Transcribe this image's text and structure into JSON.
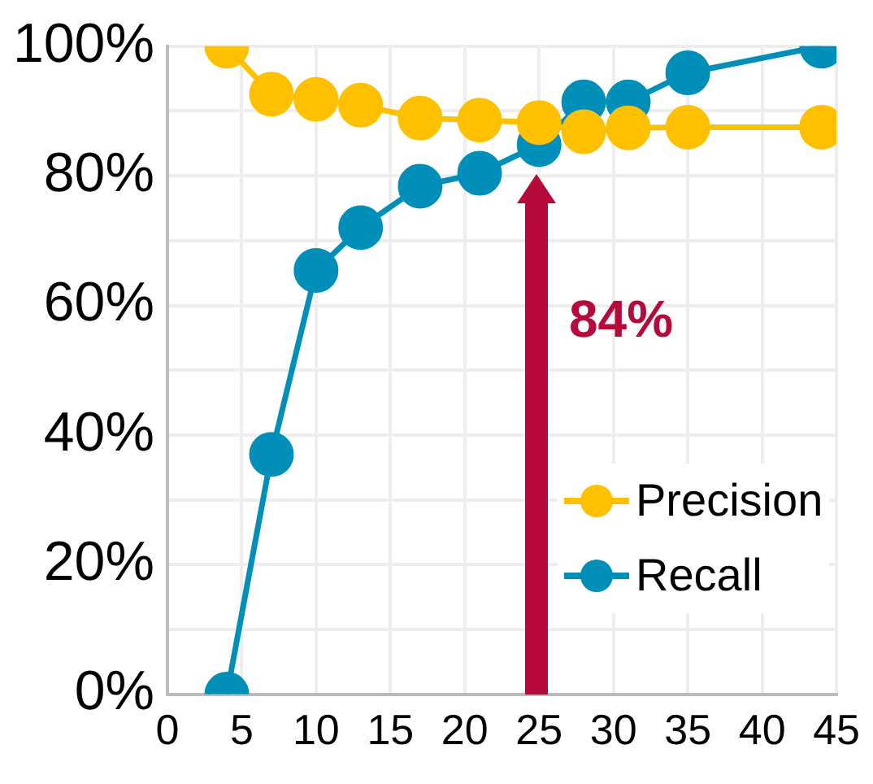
{
  "chart_data": {
    "type": "line",
    "xlim": [
      0,
      45
    ],
    "xticks": [
      0,
      5,
      10,
      15,
      20,
      25,
      30,
      35,
      40,
      45
    ],
    "ylim": [
      0,
      100
    ],
    "yticks": [
      {
        "value": 0,
        "label": "0%"
      },
      {
        "value": 10,
        "label": null
      },
      {
        "value": 20,
        "label": "20%"
      },
      {
        "value": 30,
        "label": null
      },
      {
        "value": 40,
        "label": "40%"
      },
      {
        "value": 50,
        "label": null
      },
      {
        "value": 60,
        "label": "60%"
      },
      {
        "value": 70,
        "label": null
      },
      {
        "value": 80,
        "label": "80%"
      },
      {
        "value": 90,
        "label": null
      },
      {
        "value": 100,
        "label": "100%"
      }
    ],
    "x": [
      4,
      7,
      10,
      13,
      17,
      21,
      25,
      28,
      31,
      35,
      44
    ],
    "series": [
      {
        "name": "Precision",
        "color": "#ffc000",
        "values": [
          100,
          92.6,
          91.8,
          90.9,
          88.9,
          88.6,
          88.2,
          86.8,
          87.4,
          87.5,
          87.5
        ]
      },
      {
        "name": "Recall",
        "color": "#008fb8",
        "values": [
          0,
          37,
          65.4,
          72,
          78.4,
          80.4,
          84.8,
          91.4,
          91.4,
          95.9,
          100
        ]
      }
    ],
    "annotations": [
      "84%"
    ],
    "grid": true,
    "legend": "bottom right",
    "marker": "circle",
    "line_style": "solid"
  }
}
